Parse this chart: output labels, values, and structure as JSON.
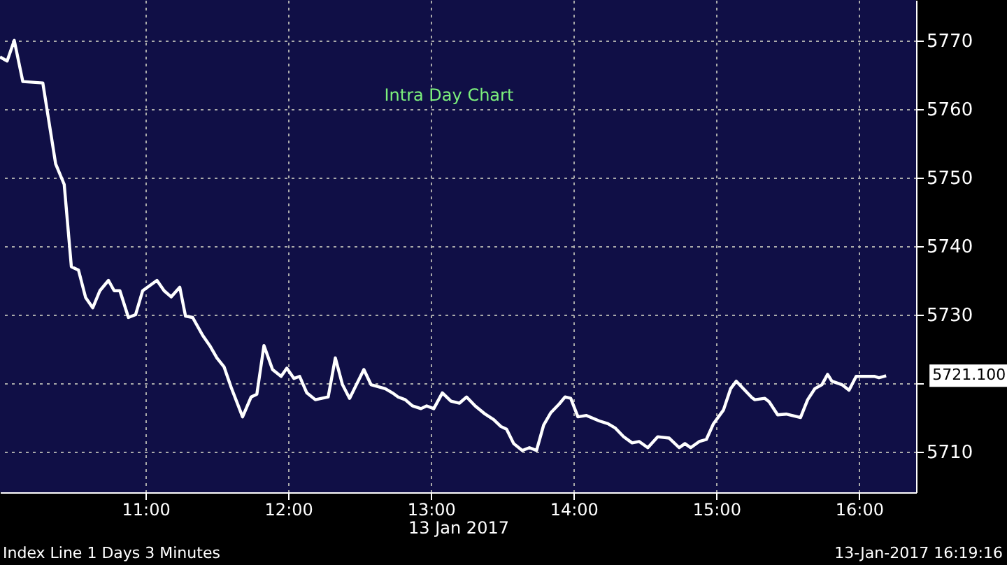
{
  "chart_data": {
    "type": "line",
    "title": "Intra Day Chart",
    "xlabel": "13 Jan 2017",
    "x": [
      9.98,
      10.03,
      10.08,
      10.14,
      10.28,
      10.37,
      10.43,
      10.48,
      10.53,
      10.58,
      10.63,
      10.68,
      10.74,
      10.78,
      10.82,
      10.88,
      10.93,
      10.98,
      11.08,
      11.13,
      11.18,
      11.24,
      11.28,
      11.33,
      11.4,
      11.45,
      11.5,
      11.55,
      11.6,
      11.68,
      11.74,
      11.78,
      11.83,
      11.89,
      11.95,
      11.99,
      12.04,
      12.08,
      12.13,
      12.19,
      12.28,
      12.33,
      12.38,
      12.43,
      12.53,
      12.58,
      12.68,
      12.73,
      12.77,
      12.82,
      12.87,
      12.93,
      12.97,
      13.02,
      13.08,
      13.14,
      13.2,
      13.25,
      13.31,
      13.38,
      13.44,
      13.49,
      13.53,
      13.58,
      13.64,
      13.69,
      13.74,
      13.79,
      13.84,
      13.9,
      13.94,
      13.98,
      14.03,
      14.09,
      14.18,
      14.24,
      14.29,
      14.35,
      14.41,
      14.46,
      14.52,
      14.59,
      14.67,
      14.74,
      14.78,
      14.82,
      14.88,
      14.93,
      14.98,
      15.05,
      15.1,
      15.14,
      15.25,
      15.27,
      15.34,
      15.37,
      15.43,
      15.49,
      15.59,
      15.64,
      15.69,
      15.74,
      15.78,
      15.81,
      15.88,
      15.93,
      15.98,
      16.11,
      16.14,
      16.19
    ],
    "series": [
      {
        "color": "#ffffff",
        "values": [
          5767.6,
          5767,
          5770,
          5764,
          5763.8,
          5752,
          5749,
          5737,
          5736.5,
          5732.5,
          5731,
          5733.5,
          5735,
          5733.5,
          5733.5,
          5729.6,
          5730,
          5733.5,
          5735,
          5733.5,
          5732.6,
          5734,
          5729.8,
          5729.6,
          5727,
          5725.5,
          5723.7,
          5722.4,
          5719.4,
          5715.1,
          5718,
          5718.4,
          5725.5,
          5722,
          5721,
          5722.2,
          5720.7,
          5721,
          5718.6,
          5717.6,
          5718,
          5723.7,
          5719.8,
          5717.8,
          5722,
          5719.8,
          5719.2,
          5718.6,
          5718,
          5717.6,
          5716.7,
          5716.3,
          5716.7,
          5716.3,
          5718.6,
          5717.4,
          5717.1,
          5718,
          5716.7,
          5715.5,
          5714.7,
          5713.7,
          5713.3,
          5711.2,
          5710.2,
          5710.6,
          5710.2,
          5713.9,
          5715.7,
          5717,
          5718,
          5717.8,
          5715.1,
          5715.3,
          5714.5,
          5714.1,
          5713.5,
          5712.2,
          5711.3,
          5711.5,
          5710.6,
          5712.2,
          5712,
          5710.6,
          5711.2,
          5710.6,
          5711.5,
          5711.8,
          5714.1,
          5716.1,
          5719.2,
          5720.3,
          5717.9,
          5717.6,
          5717.8,
          5717.3,
          5715.4,
          5715.5,
          5715,
          5717.6,
          5719.2,
          5719.8,
          5721.3,
          5720.3,
          5719.8,
          5719,
          5721,
          5721,
          5720.8,
          5721.1
        ]
      }
    ],
    "xlim": [
      9.98,
      16.4
    ],
    "xticks": [
      {
        "value": 11,
        "label": "11:00"
      },
      {
        "value": 12,
        "label": "12:00"
      },
      {
        "value": 13,
        "label": "13:00"
      },
      {
        "value": 14,
        "label": "14:00"
      },
      {
        "value": 15,
        "label": "15:00"
      },
      {
        "value": 16,
        "label": "16:00"
      }
    ],
    "ylim": [
      5704.1,
      5775.9
    ],
    "yticks": [
      5710,
      {
        "value": 5720,
        "label": null
      },
      5730,
      5740,
      5750,
      5760,
      5770
    ],
    "grid": true,
    "marker": "none",
    "line_style": "solid",
    "annotations": [
      {
        "text": "5721.100",
        "x": 16.19,
        "y": 5721.1
      },
      "Index Line 1 Days 3 Minutes",
      "13-Jan-2017 16:19:16"
    ]
  }
}
